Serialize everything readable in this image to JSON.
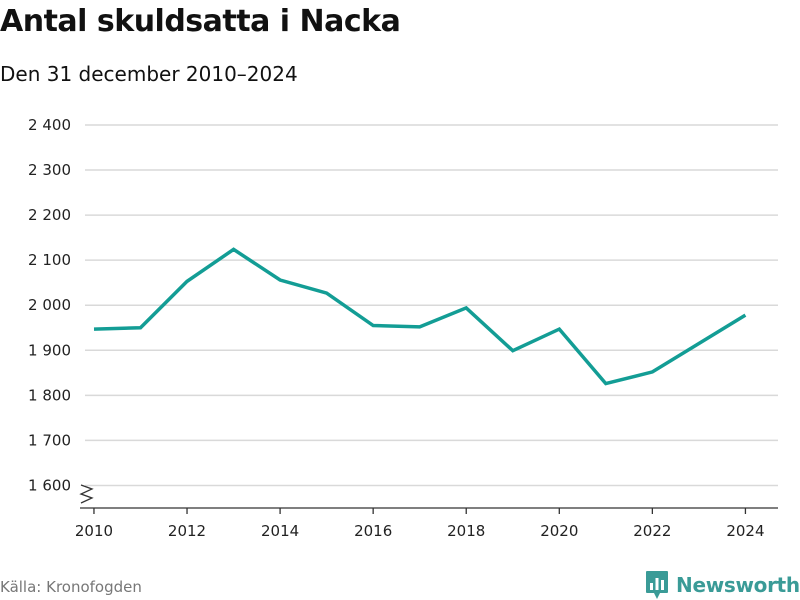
{
  "header": {
    "title": "Antal skuldsatta i Nacka",
    "subtitle": "Den 31 december 2010–2024"
  },
  "footer": {
    "source": "Källa: Kronofogden",
    "brand": "Newsworthy"
  },
  "colors": {
    "line": "#139d95",
    "grid": "#d9d9d9",
    "axis": "#333333",
    "brand": "#3a9b97"
  },
  "chart_data": {
    "type": "line",
    "title": "Antal skuldsatta i Nacka",
    "subtitle": "Den 31 december 2010–2024",
    "x": [
      2010,
      2011,
      2012,
      2013,
      2014,
      2015,
      2016,
      2017,
      2018,
      2019,
      2020,
      2021,
      2022,
      2023,
      2024
    ],
    "series": [
      {
        "values": [
          1947,
          1950,
          2053,
          2124,
          2056,
          2027,
          1955,
          1952,
          1994,
          1899,
          1947,
          1826,
          1852,
          1915,
          1978
        ]
      }
    ],
    "xlim": [
      2009.7,
      2024.7
    ],
    "ylim": [
      1550,
      2400
    ],
    "y_axis_break": true,
    "x_ticks": [
      2010,
      2012,
      2014,
      2016,
      2018,
      2020,
      2022,
      2024
    ],
    "x_tick_labels": [
      "2010",
      "2012",
      "2014",
      "2016",
      "2018",
      "2020",
      "2022",
      "2024"
    ],
    "y_ticks": [
      1600,
      1700,
      1800,
      1900,
      2000,
      2100,
      2200,
      2300,
      2400
    ],
    "y_tick_labels": [
      "1 600",
      "1 700",
      "1 800",
      "1 900",
      "2 000",
      "2 100",
      "2 200",
      "2 300",
      "2 400"
    ],
    "grid": true,
    "legend": "none"
  }
}
